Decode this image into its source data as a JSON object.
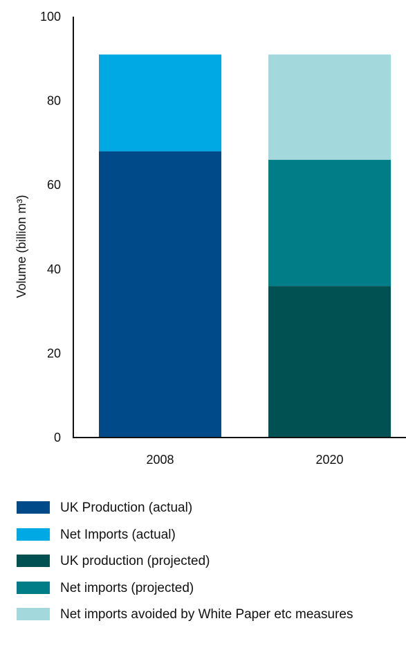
{
  "chart_data": {
    "type": "bar",
    "stacked": true,
    "categories": [
      "2008",
      "2020"
    ],
    "ylabel": "Volume (billion m³)",
    "ylim": [
      0,
      100
    ],
    "yticks": [
      "0",
      "20",
      "40",
      "60",
      "80",
      "100"
    ],
    "grid": false,
    "legend_position": "bottom",
    "series": [
      {
        "name": "UK Production (actual)",
        "color": "#004a8a",
        "values": [
          68,
          null
        ]
      },
      {
        "name": "Net Imports (actual)",
        "color": "#00a9e4",
        "values": [
          23,
          null
        ]
      },
      {
        "name": "UK production (projected)",
        "color": "#015153",
        "values": [
          null,
          36
        ]
      },
      {
        "name": "Net imports (projected)",
        "color": "#007d87",
        "values": [
          null,
          30
        ]
      },
      {
        "name": "Net imports avoided by White Paper etc measures",
        "color": "#a3d9dc",
        "values": [
          null,
          25
        ]
      }
    ]
  }
}
